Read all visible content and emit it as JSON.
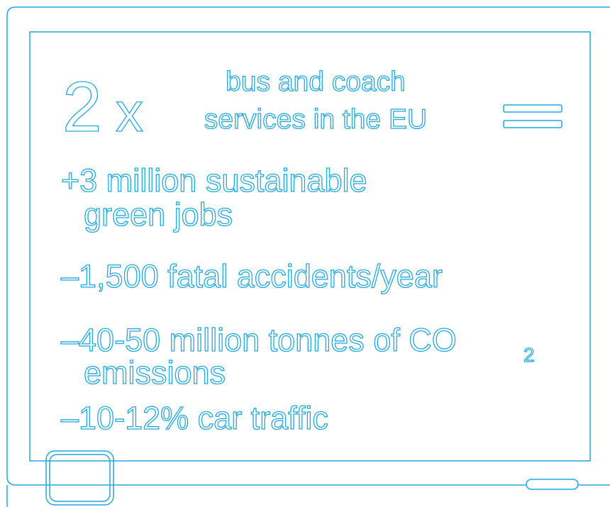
{
  "headline": {
    "multiplier": "2",
    "times": "x",
    "line1": "bus and coach",
    "line2": "services in the EU"
  },
  "items": [
    {
      "lines": [
        "+3 million sustainable",
        "green jobs"
      ]
    },
    {
      "lines": [
        "–1,500 fatal accidents/year"
      ]
    },
    {
      "lines": [
        "–40-50 million tonnes of CO",
        "emissions"
      ],
      "subscript": "2"
    },
    {
      "lines": [
        "–10-12% car traffic"
      ]
    }
  ]
}
